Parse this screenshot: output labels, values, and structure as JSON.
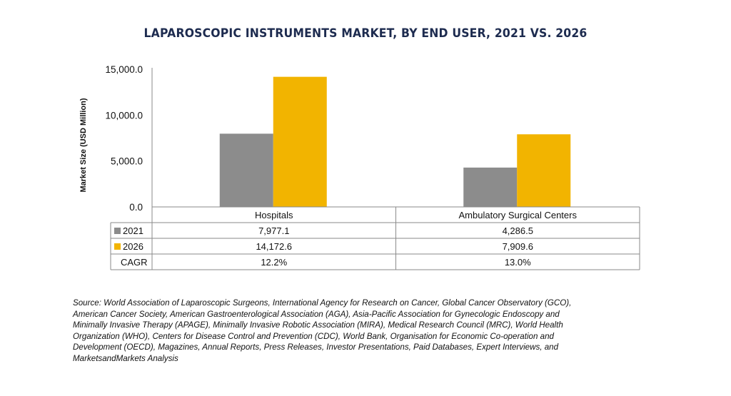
{
  "chart_data": {
    "type": "bar",
    "title": "LAPAROSCOPIC INSTRUMENTS MARKET, BY END USER, 2021 VS. 2026",
    "ylabel": "Market Size (USD Million)",
    "xlabel": "",
    "ylim": [
      0,
      15000
    ],
    "yticks": [
      "0.0",
      "5,000.0",
      "10,000.0",
      "15,000.0"
    ],
    "ytick_values": [
      0,
      5000,
      10000,
      15000
    ],
    "categories": [
      "Hospitals",
      "Ambulatory Surgical Centers"
    ],
    "series": [
      {
        "name": "2021",
        "color": "#8c8c8c",
        "values": [
          7977.1,
          4286.5
        ],
        "labels": [
          "7,977.1",
          "4,286.5"
        ]
      },
      {
        "name": "2026",
        "color": "#f2b400",
        "values": [
          14172.6,
          7909.6
        ],
        "labels": [
          "14,172.6",
          "7,909.6"
        ]
      }
    ],
    "table_rows": [
      {
        "name": "CAGR",
        "labels": [
          "12.2%",
          "13.0%"
        ]
      }
    ],
    "grid": false,
    "legend": "in data table"
  },
  "source_lines": [
    "Source: World Association of Laparoscopic Surgeons, International Agency for Research on Cancer, Global Cancer Observatory (GCO),",
    "American Cancer Society, American Gastroenterological Association (AGA), Asia-Pacific Association for Gynecologic Endoscopy and",
    "Minimally Invasive Therapy (APAGE), Minimally Invasive Robotic Association (MIRA), Medical Research Council (MRC), World Health",
    "Organization (WHO), Centers for Disease Control and Prevention (CDC), World Bank, Organisation for Economic Co-operation and",
    "Development (OECD), Magazines, Annual Reports, Press Releases, Investor Presentations, Paid Databases, Expert Interviews, and",
    "MarketsandMarkets Analysis"
  ]
}
